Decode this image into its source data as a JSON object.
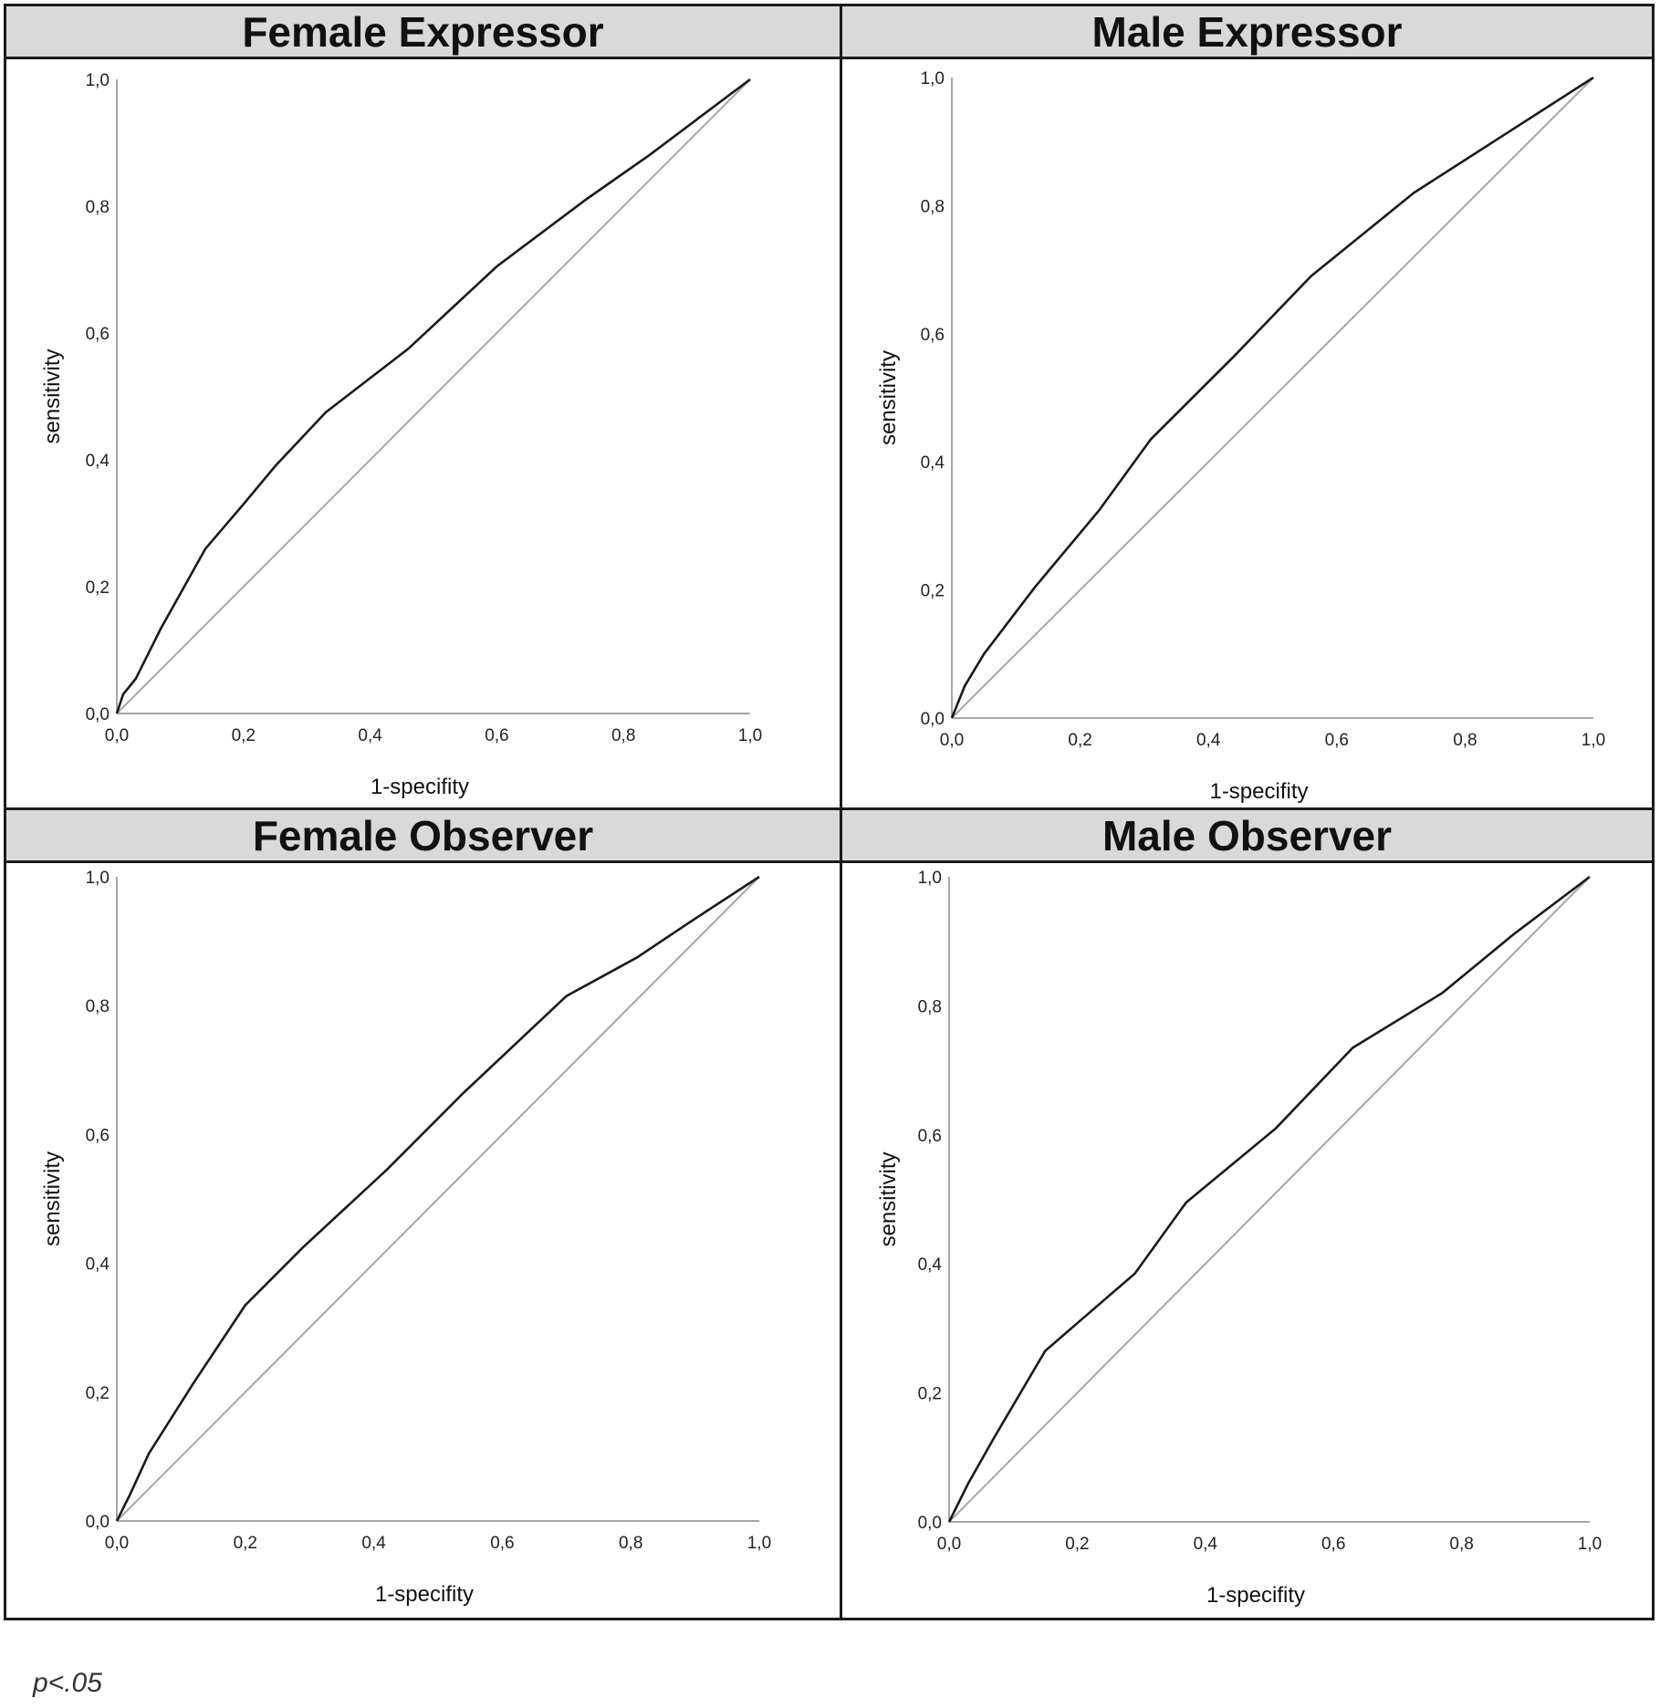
{
  "chart_data": [
    {
      "type": "line",
      "title": "Female Expressor",
      "xlabel": "1-specifity",
      "ylabel": "sensitivity",
      "xlim": [
        0,
        1
      ],
      "ylim": [
        0,
        1
      ],
      "ticks": [
        "0,0",
        "0,2",
        "0,4",
        "0,6",
        "0,8",
        "1,0"
      ],
      "grid": false,
      "series": [
        {
          "role": "roc",
          "color": "#1a1a1a",
          "points": [
            [
              0,
              0
            ],
            [
              0.01,
              0.03
            ],
            [
              0.03,
              0.055
            ],
            [
              0.07,
              0.135
            ],
            [
              0.14,
              0.26
            ],
            [
              0.2,
              0.33
            ],
            [
              0.25,
              0.39
            ],
            [
              0.33,
              0.475
            ],
            [
              0.46,
              0.575
            ],
            [
              0.6,
              0.705
            ],
            [
              0.74,
              0.81
            ],
            [
              0.84,
              0.88
            ],
            [
              0.92,
              0.94
            ],
            [
              1,
              1
            ]
          ]
        },
        {
          "role": "reference",
          "color": "#a6a6a6",
          "points": [
            [
              0,
              0
            ],
            [
              1,
              1
            ]
          ]
        }
      ]
    },
    {
      "type": "line",
      "title": "Male Expressor",
      "xlabel": "1-specifity",
      "ylabel": "sensitivity",
      "xlim": [
        0,
        1
      ],
      "ylim": [
        0,
        1
      ],
      "ticks": [
        "0,0",
        "0,2",
        "0,4",
        "0,6",
        "0,8",
        "1,0"
      ],
      "grid": false,
      "series": [
        {
          "role": "roc",
          "color": "#1a1a1a",
          "points": [
            [
              0,
              0
            ],
            [
              0.02,
              0.05
            ],
            [
              0.05,
              0.1
            ],
            [
              0.13,
              0.205
            ],
            [
              0.23,
              0.325
            ],
            [
              0.31,
              0.435
            ],
            [
              0.44,
              0.565
            ],
            [
              0.56,
              0.69
            ],
            [
              0.72,
              0.82
            ],
            [
              0.86,
              0.91
            ],
            [
              1,
              1
            ]
          ]
        },
        {
          "role": "reference",
          "color": "#a6a6a6",
          "points": [
            [
              0,
              0
            ],
            [
              1,
              1
            ]
          ]
        }
      ]
    },
    {
      "type": "line",
      "title": "Female Observer",
      "xlabel": "1-specifity",
      "ylabel": "sensitivity",
      "xlim": [
        0,
        1
      ],
      "ylim": [
        0,
        1
      ],
      "ticks": [
        "0,0",
        "0,2",
        "0,4",
        "0,6",
        "0,8",
        "1,0"
      ],
      "grid": false,
      "series": [
        {
          "role": "roc",
          "color": "#1a1a1a",
          "points": [
            [
              0,
              0
            ],
            [
              0.02,
              0.04
            ],
            [
              0.05,
              0.105
            ],
            [
              0.12,
              0.215
            ],
            [
              0.2,
              0.335
            ],
            [
              0.29,
              0.425
            ],
            [
              0.42,
              0.545
            ],
            [
              0.54,
              0.665
            ],
            [
              0.7,
              0.815
            ],
            [
              0.81,
              0.875
            ],
            [
              0.9,
              0.935
            ],
            [
              1,
              1
            ]
          ]
        },
        {
          "role": "reference",
          "color": "#a6a6a6",
          "points": [
            [
              0,
              0
            ],
            [
              1,
              1
            ]
          ]
        }
      ]
    },
    {
      "type": "line",
      "title": "Male Observer",
      "xlabel": "1-specifity",
      "ylabel": "sensitivity",
      "xlim": [
        0,
        1
      ],
      "ylim": [
        0,
        1
      ],
      "ticks": [
        "0,0",
        "0,2",
        "0,4",
        "0,6",
        "0,8",
        "1,0"
      ],
      "grid": false,
      "series": [
        {
          "role": "roc",
          "color": "#1a1a1a",
          "points": [
            [
              0,
              0
            ],
            [
              0.03,
              0.06
            ],
            [
              0.07,
              0.13
            ],
            [
              0.15,
              0.265
            ],
            [
              0.22,
              0.325
            ],
            [
              0.29,
              0.385
            ],
            [
              0.37,
              0.495
            ],
            [
              0.51,
              0.61
            ],
            [
              0.63,
              0.735
            ],
            [
              0.77,
              0.82
            ],
            [
              0.88,
              0.91
            ],
            [
              1,
              1
            ]
          ]
        },
        {
          "role": "reference",
          "color": "#a6a6a6",
          "points": [
            [
              0,
              0
            ],
            [
              1,
              1
            ]
          ]
        }
      ]
    }
  ],
  "footnote": "p<.05"
}
